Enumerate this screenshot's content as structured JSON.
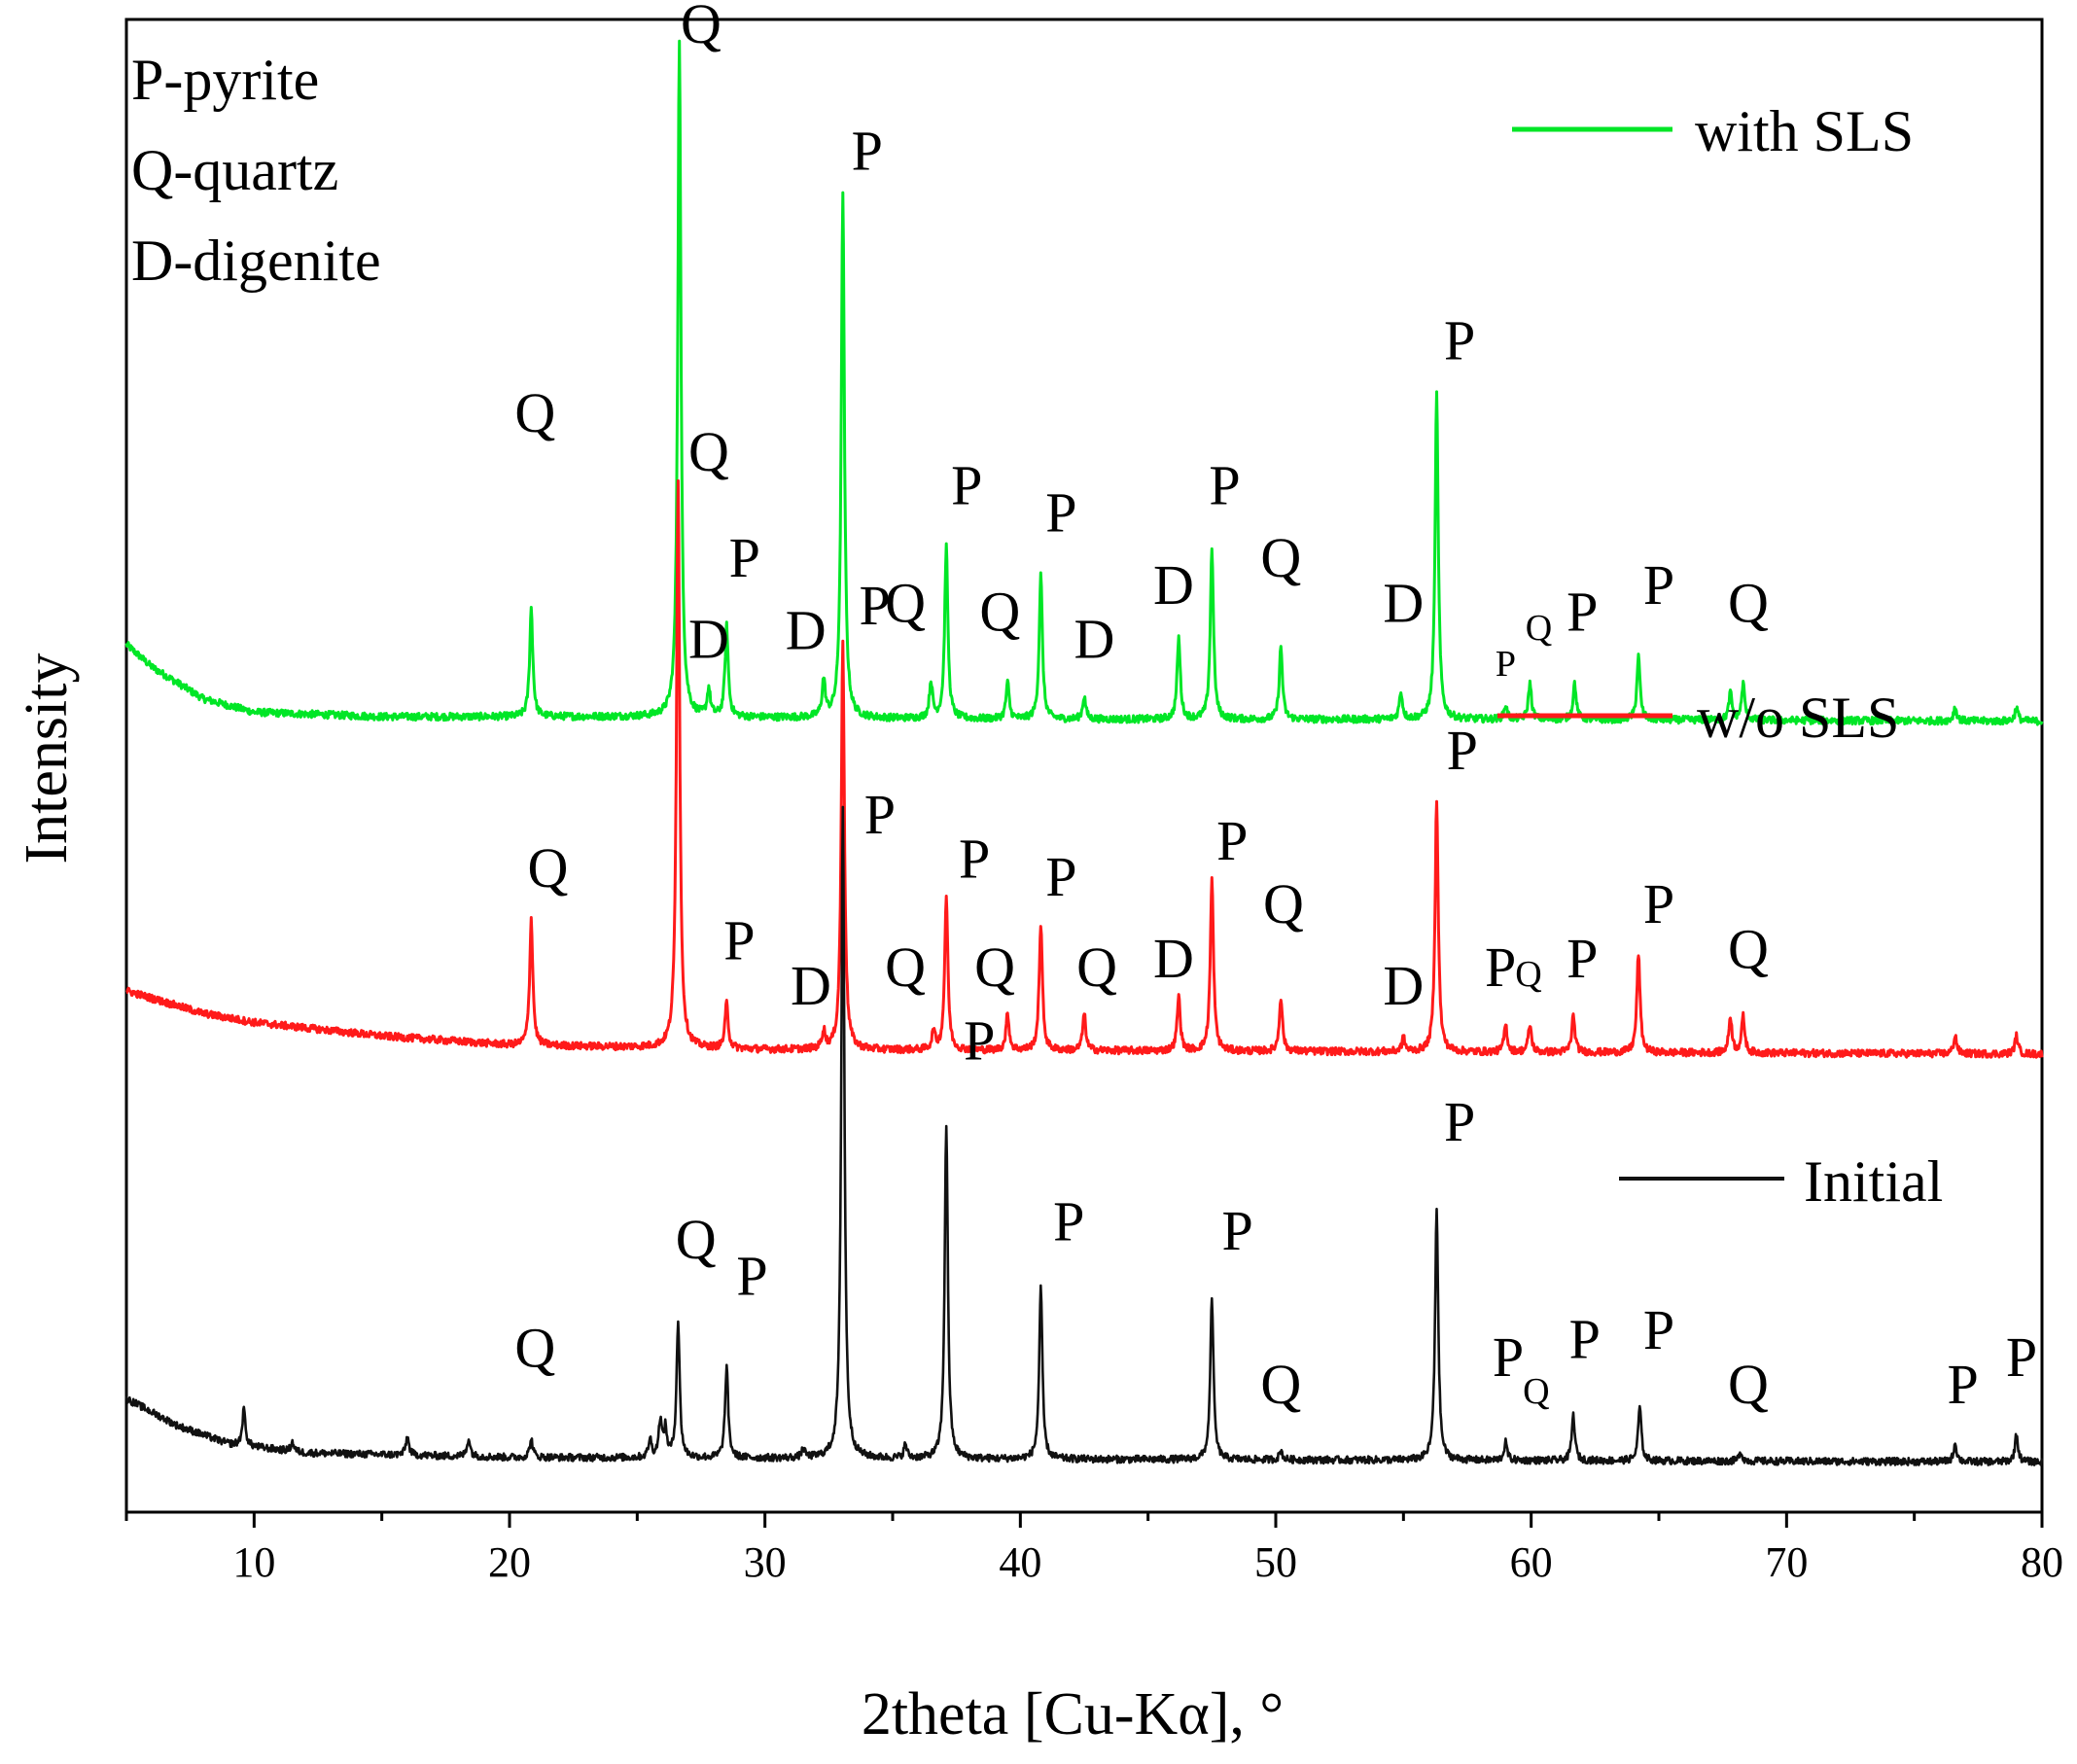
{
  "chart_data": {
    "type": "line",
    "title": "",
    "xlabel": "2theta [Cu-Kα], °",
    "ylabel": "Intensity",
    "xlim": [
      5,
      80
    ],
    "x_ticks": [
      10,
      20,
      30,
      40,
      50,
      60,
      70,
      80
    ],
    "notes": [
      "P-pyrite",
      "Q-quartz",
      "D-digenite"
    ],
    "series": [
      {
        "name": "with SLS",
        "color": "#00e626",
        "offset": 1.48,
        "baseline": [
          [
            5,
            0.095
          ],
          [
            6,
            0.07
          ],
          [
            8,
            0.035
          ],
          [
            10,
            0.02
          ],
          [
            15,
            0.015
          ],
          [
            25,
            0.015
          ],
          [
            40,
            0.012
          ],
          [
            60,
            0.012
          ],
          [
            80,
            0.01
          ]
        ],
        "peaks": [
          [
            20.85,
            0.12
          ],
          [
            26.65,
            0.75
          ],
          [
            27.8,
            0.03
          ],
          [
            28.5,
            0.1
          ],
          [
            32.3,
            0.04
          ],
          [
            33.05,
            0.58
          ],
          [
            36.5,
            0.04
          ],
          [
            37.1,
            0.19
          ],
          [
            39.5,
            0.04
          ],
          [
            40.8,
            0.16
          ],
          [
            42.5,
            0.025
          ],
          [
            46.2,
            0.09
          ],
          [
            47.5,
            0.19
          ],
          [
            50.2,
            0.08
          ],
          [
            54.9,
            0.03
          ],
          [
            56.3,
            0.36
          ],
          [
            59.0,
            0.015
          ],
          [
            59.95,
            0.04
          ],
          [
            61.7,
            0.04
          ],
          [
            64.2,
            0.07
          ],
          [
            67.8,
            0.03
          ],
          [
            68.3,
            0.04
          ],
          [
            76.6,
            0.015
          ],
          [
            79.0,
            0.015
          ]
        ],
        "labels": [
          {
            "text": "Q",
            "x": 21.0,
            "y": 0.33
          },
          {
            "text": "Q",
            "x": 27.5,
            "y": 0.76
          },
          {
            "text": "P",
            "x": 34.0,
            "y": 0.62
          },
          {
            "text": "D",
            "x": 27.8,
            "y": 0.08
          },
          {
            "text": "P",
            "x": 29.2,
            "y": 0.17
          },
          {
            "text": "D",
            "x": 31.6,
            "y": 0.09
          },
          {
            "text": "Q",
            "x": 35.5,
            "y": 0.12
          },
          {
            "text": "P",
            "x": 37.9,
            "y": 0.25
          },
          {
            "text": "Q",
            "x": 39.2,
            "y": 0.11
          },
          {
            "text": "P",
            "x": 41.6,
            "y": 0.22
          },
          {
            "text": "D",
            "x": 42.9,
            "y": 0.08
          },
          {
            "text": "D",
            "x": 46.0,
            "y": 0.14
          },
          {
            "text": "P",
            "x": 48.0,
            "y": 0.25
          },
          {
            "text": "Q",
            "x": 50.2,
            "y": 0.17
          },
          {
            "text": "D",
            "x": 55.0,
            "y": 0.12
          },
          {
            "text": "P",
            "x": 57.2,
            "y": 0.41
          },
          {
            "text": "P",
            "x": 59.0,
            "y": 0.06,
            "small": true
          },
          {
            "text": "Q",
            "x": 60.3,
            "y": 0.1,
            "small": true
          },
          {
            "text": "P",
            "x": 62.0,
            "y": 0.11
          },
          {
            "text": "P",
            "x": 65.0,
            "y": 0.14
          },
          {
            "text": "Q",
            "x": 68.5,
            "y": 0.12
          }
        ]
      },
      {
        "name": "w/o SLS",
        "color": "#ff1a1a",
        "offset": 0.82,
        "baseline": [
          [
            5,
            0.075
          ],
          [
            8,
            0.05
          ],
          [
            10,
            0.04
          ],
          [
            15,
            0.025
          ],
          [
            20,
            0.015
          ],
          [
            30,
            0.01
          ],
          [
            50,
            0.008
          ],
          [
            80,
            0.005
          ]
        ],
        "peaks": [
          [
            20.85,
            0.14
          ],
          [
            26.6,
            0.63
          ],
          [
            28.5,
            0.05
          ],
          [
            32.3,
            0.02
          ],
          [
            33.05,
            0.45
          ],
          [
            36.6,
            0.02
          ],
          [
            37.1,
            0.17
          ],
          [
            39.5,
            0.04
          ],
          [
            40.8,
            0.14
          ],
          [
            42.5,
            0.04
          ],
          [
            46.2,
            0.06
          ],
          [
            47.5,
            0.19
          ],
          [
            50.2,
            0.06
          ],
          [
            55.0,
            0.015
          ],
          [
            56.3,
            0.28
          ],
          [
            59.0,
            0.03
          ],
          [
            59.95,
            0.03
          ],
          [
            61.65,
            0.04
          ],
          [
            64.2,
            0.11
          ],
          [
            67.8,
            0.04
          ],
          [
            68.3,
            0.04
          ],
          [
            76.6,
            0.02
          ],
          [
            79.0,
            0.02
          ]
        ],
        "labels": [
          {
            "text": "Q",
            "x": 21.5,
            "y": 0.19
          },
          {
            "text": "Q",
            "x": 27.8,
            "y": 0.65
          },
          {
            "text": "P",
            "x": 34.3,
            "y": 0.48
          },
          {
            "text": "P",
            "x": 29.0,
            "y": 0.11
          },
          {
            "text": "D",
            "x": 31.8,
            "y": 0.06
          },
          {
            "text": "Q",
            "x": 35.5,
            "y": 0.08
          },
          {
            "text": "P",
            "x": 38.2,
            "y": 0.2
          },
          {
            "text": "Q",
            "x": 39.0,
            "y": 0.08
          },
          {
            "text": "P",
            "x": 41.6,
            "y": 0.18
          },
          {
            "text": "Q",
            "x": 43.0,
            "y": 0.08
          },
          {
            "text": "D",
            "x": 46.0,
            "y": 0.09
          },
          {
            "text": "P",
            "x": 48.3,
            "y": 0.22
          },
          {
            "text": "Q",
            "x": 50.3,
            "y": 0.15
          },
          {
            "text": "D",
            "x": 55.0,
            "y": 0.06
          },
          {
            "text": "P",
            "x": 57.3,
            "y": 0.32
          },
          {
            "text": "P",
            "x": 58.8,
            "y": 0.08
          },
          {
            "text": "Q",
            "x": 59.9,
            "y": 0.08,
            "small": true
          },
          {
            "text": "P",
            "x": 62.0,
            "y": 0.09
          },
          {
            "text": "P",
            "x": 65.0,
            "y": 0.15
          },
          {
            "text": "Q",
            "x": 68.5,
            "y": 0.1
          }
        ]
      },
      {
        "name": "Initial",
        "color": "#111111",
        "offset": 0.0,
        "baseline": [
          [
            5,
            0.075
          ],
          [
            7,
            0.045
          ],
          [
            9,
            0.025
          ],
          [
            12,
            0.015
          ],
          [
            20,
            0.01
          ],
          [
            40,
            0.008
          ],
          [
            80,
            0.005
          ]
        ],
        "peaks": [
          [
            9.6,
            0.04
          ],
          [
            11.5,
            0.01
          ],
          [
            16.0,
            0.02
          ],
          [
            18.4,
            0.02
          ],
          [
            20.85,
            0.02
          ],
          [
            25.5,
            0.02
          ],
          [
            25.9,
            0.04
          ],
          [
            26.1,
            0.03
          ],
          [
            26.6,
            0.15
          ],
          [
            28.5,
            0.1
          ],
          [
            31.5,
            0.01
          ],
          [
            33.05,
            0.72
          ],
          [
            35.5,
            0.015
          ],
          [
            37.1,
            0.37
          ],
          [
            40.8,
            0.19
          ],
          [
            47.5,
            0.18
          ],
          [
            50.2,
            0.01
          ],
          [
            56.3,
            0.28
          ],
          [
            59.0,
            0.02
          ],
          [
            61.65,
            0.05
          ],
          [
            64.25,
            0.06
          ],
          [
            68.2,
            0.01
          ],
          [
            76.6,
            0.02
          ],
          [
            79.0,
            0.03
          ]
        ],
        "labels": [
          {
            "text": "P",
            "x": 34.5,
            "y": 0.7
          },
          {
            "text": "Q",
            "x": 27.3,
            "y": 0.23
          },
          {
            "text": "Q",
            "x": 21.0,
            "y": 0.11
          },
          {
            "text": "P",
            "x": 29.5,
            "y": 0.19
          },
          {
            "text": "P",
            "x": 38.4,
            "y": 0.45
          },
          {
            "text": "P",
            "x": 41.9,
            "y": 0.25
          },
          {
            "text": "P",
            "x": 48.5,
            "y": 0.24
          },
          {
            "text": "Q",
            "x": 50.2,
            "y": 0.07
          },
          {
            "text": "P",
            "x": 57.2,
            "y": 0.36
          },
          {
            "text": "P",
            "x": 59.1,
            "y": 0.1
          },
          {
            "text": "Q",
            "x": 60.2,
            "y": 0.07,
            "small": true
          },
          {
            "text": "P",
            "x": 62.1,
            "y": 0.12
          },
          {
            "text": "P",
            "x": 65.0,
            "y": 0.13
          },
          {
            "text": "Q",
            "x": 68.5,
            "y": 0.07
          },
          {
            "text": "P",
            "x": 76.9,
            "y": 0.07
          },
          {
            "text": "P",
            "x": 79.2,
            "y": 0.1
          }
        ]
      }
    ]
  }
}
